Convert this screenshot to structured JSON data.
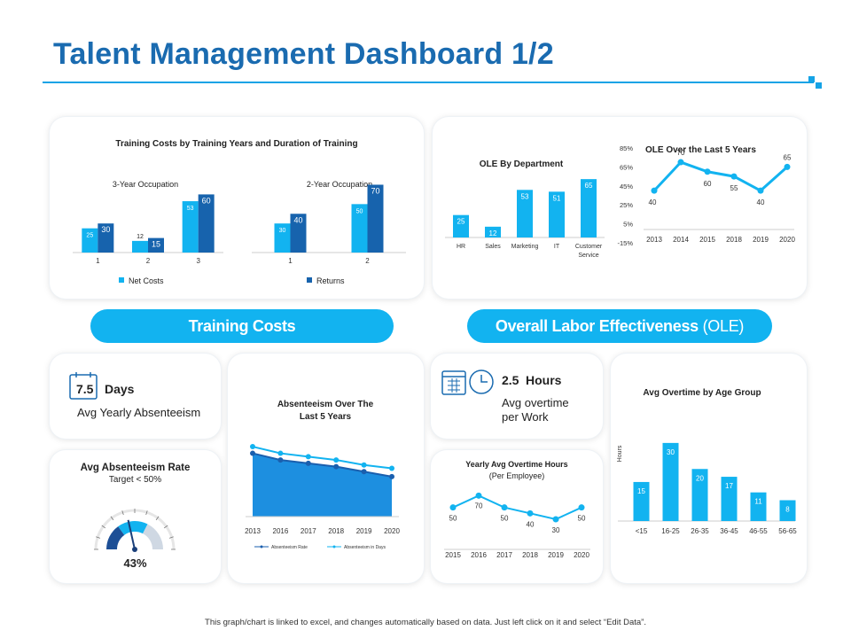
{
  "page_title": "Talent Management Dashboard 1/2",
  "footer_note": "This graph/chart is linked to excel, and changes automatically based on data. Just left click on it and select “Edit Data”.",
  "colors": {
    "accent": "#15a3e6",
    "bar_light": "#12b3f0",
    "bar_dark": "#1763ad",
    "pill": "#12b3f0",
    "title": "#1a6bb0"
  },
  "pills": {
    "training_costs": "Training Costs",
    "ole_bold": "Overall Labor Effectiveness",
    "ole_suffix": "(OLE)"
  },
  "kpis": {
    "days_value": "7.5",
    "days_unit": "Days",
    "days_label": "Avg Yearly Absenteeism",
    "hours_value": "2.5",
    "hours_unit": "Hours",
    "hours_label_1": "Avg overtime",
    "hours_label_2": "per Work",
    "gauge_title": "Avg Absenteeism Rate",
    "gauge_target": "Target < 50%",
    "gauge_value": "43%",
    "gauge_fraction": 0.43
  },
  "chart_data": [
    {
      "id": "training_costs",
      "type": "bar",
      "title": "Training Costs by Training Years and  Duration of Training",
      "legend": [
        "Net Costs",
        "Returns"
      ],
      "legend_position": "bottom",
      "groups": [
        {
          "subtitle": "3-Year Occupation",
          "categories": [
            "1",
            "2",
            "3"
          ],
          "series": [
            {
              "name": "Net Costs",
              "values": [
                25,
                12,
                53
              ]
            },
            {
              "name": "Returns",
              "values": [
                30,
                15,
                60
              ]
            }
          ],
          "ylim": [
            0,
            75
          ]
        },
        {
          "subtitle": "2-Year Occupation",
          "categories": [
            "1",
            "2"
          ],
          "series": [
            {
              "name": "Net Costs",
              "values": [
                30,
                50
              ]
            },
            {
              "name": "Returns",
              "values": [
                40,
                70
              ]
            }
          ],
          "ylim": [
            0,
            75
          ]
        }
      ]
    },
    {
      "id": "ole_department",
      "type": "bar",
      "title": "OLE By Department",
      "categories": [
        "HR",
        "Sales",
        "Marketing",
        "IT",
        "Customer Service"
      ],
      "values": [
        25,
        12,
        53,
        51,
        65
      ],
      "ylim": [
        0,
        75
      ]
    },
    {
      "id": "ole_5years",
      "type": "line",
      "title": "OLE  Over the Last 5 Years",
      "x": [
        "2013",
        "2014",
        "2015",
        "2018",
        "2019",
        "2020"
      ],
      "values": [
        40,
        70,
        60,
        55,
        40,
        65
      ],
      "yticks": [
        "85%",
        "65%",
        "45%",
        "25%",
        "5%",
        "-15%"
      ],
      "ylim": [
        -15,
        85
      ]
    },
    {
      "id": "absenteeism",
      "type": "area",
      "title": "Absenteeism Over The Last 5 Years",
      "x": [
        "2013",
        "2016",
        "2017",
        "2018",
        "2019",
        "2020"
      ],
      "series": [
        {
          "name": "Absenteeism Rate",
          "values": [
            38,
            34,
            32,
            30,
            27,
            24
          ]
        },
        {
          "name": "Absenteeism in Days",
          "values": [
            42,
            38,
            36,
            34,
            31,
            29
          ]
        }
      ],
      "ylim": [
        0,
        50
      ]
    },
    {
      "id": "overtime_yearly",
      "type": "line",
      "title": "Yearly Avg Overtime Hours",
      "subtitle": "(Per Employee)",
      "x": [
        "2015",
        "2016",
        "2017",
        "2018",
        "2019",
        "2020"
      ],
      "values": [
        50,
        70,
        50,
        40,
        30,
        50
      ],
      "ylim": [
        0,
        90
      ]
    },
    {
      "id": "overtime_age",
      "type": "bar",
      "title": "Avg Overtime by Age Group",
      "ylabel": "Hours",
      "categories": [
        "<15",
        "16-25",
        "26-35",
        "36-45",
        "46-55",
        "56-65"
      ],
      "values": [
        15,
        30,
        20,
        17,
        11,
        8
      ],
      "ylim": [
        0,
        32
      ]
    }
  ]
}
